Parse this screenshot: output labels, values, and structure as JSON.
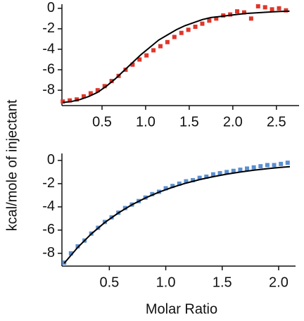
{
  "labels": {
    "y_label": "kcal/mole of injectant",
    "x_label": "Molar Ratio"
  },
  "chart_data": [
    {
      "type": "scatter",
      "xlim": [
        0.04,
        2.76
      ],
      "ylim": [
        -9.5,
        0.4
      ],
      "xticks": [
        0.5,
        {
          "value": 1,
          "label": "1.0"
        },
        1.5,
        {
          "value": 2,
          "label": "2.0"
        },
        2.5
      ],
      "yticks": [
        0,
        -2,
        -4,
        -6,
        -8
      ],
      "points": {
        "color": "#e0362a",
        "x": [
          0.05,
          0.13,
          0.21,
          0.29,
          0.37,
          0.45,
          0.53,
          0.61,
          0.69,
          0.77,
          0.85,
          0.93,
          1.01,
          1.09,
          1.17,
          1.25,
          1.33,
          1.41,
          1.49,
          1.57,
          1.65,
          1.73,
          1.81,
          1.89,
          1.97,
          2.05,
          2.13,
          2.21,
          2.29,
          2.37,
          2.45,
          2.53,
          2.61
        ],
        "values": [
          -9.1,
          -9.0,
          -8.9,
          -8.6,
          -8.3,
          -8.0,
          -7.6,
          -7.1,
          -6.6,
          -6.0,
          -5.5,
          -5.0,
          -4.6,
          -4.1,
          -3.7,
          -3.3,
          -2.8,
          -2.4,
          -2.1,
          -1.8,
          -1.5,
          -1.2,
          -1.0,
          -0.7,
          -0.6,
          -0.3,
          -0.4,
          -1.0,
          0.2,
          0.1,
          -0.1,
          0.0,
          -0.2
        ]
      },
      "fit": {
        "color": "#000000",
        "x": [
          0.05,
          0.15,
          0.25,
          0.35,
          0.45,
          0.55,
          0.65,
          0.75,
          0.85,
          0.95,
          1.05,
          1.15,
          1.25,
          1.35,
          1.45,
          1.55,
          1.65,
          1.75,
          1.85,
          1.95,
          2.05,
          2.15,
          2.25,
          2.35,
          2.45,
          2.55,
          2.65
        ],
        "values": [
          -9.2,
          -9.1,
          -8.9,
          -8.6,
          -8.2,
          -7.6,
          -6.9,
          -6.1,
          -5.3,
          -4.5,
          -3.8,
          -3.1,
          -2.6,
          -2.1,
          -1.7,
          -1.4,
          -1.1,
          -0.9,
          -0.8,
          -0.7,
          -0.6,
          -0.5,
          -0.45,
          -0.4,
          -0.35,
          -0.3,
          -0.28
        ]
      }
    },
    {
      "type": "scatter",
      "xlim": [
        0.08,
        2.15
      ],
      "ylim": [
        -9.1,
        0.6
      ],
      "xticks": [
        0.5,
        {
          "value": 1,
          "label": "1.0"
        },
        1.5,
        {
          "value": 2,
          "label": "2.0"
        }
      ],
      "yticks": [
        0,
        -2,
        -4,
        -6,
        -8
      ],
      "points": {
        "color": "#5b8fd0",
        "x": [
          0.1,
          0.16,
          0.22,
          0.28,
          0.34,
          0.4,
          0.46,
          0.52,
          0.58,
          0.64,
          0.7,
          0.76,
          0.82,
          0.88,
          0.94,
          1.0,
          1.06,
          1.12,
          1.18,
          1.24,
          1.3,
          1.36,
          1.42,
          1.48,
          1.54,
          1.6,
          1.66,
          1.72,
          1.78,
          1.84,
          1.9,
          1.96,
          2.02,
          2.08
        ],
        "values": [
          -8.8,
          -8.0,
          -7.4,
          -6.9,
          -6.3,
          -5.8,
          -5.3,
          -4.9,
          -4.5,
          -4.1,
          -3.8,
          -3.5,
          -3.2,
          -2.9,
          -2.7,
          -2.4,
          -2.2,
          -2.0,
          -1.8,
          -1.7,
          -1.5,
          -1.4,
          -1.2,
          -1.1,
          -1.0,
          -0.9,
          -0.8,
          -0.7,
          -0.6,
          -0.5,
          -0.4,
          -0.4,
          -0.3,
          -0.2
        ]
      },
      "fit": {
        "color": "#000000",
        "x": [
          0.1,
          0.22,
          0.34,
          0.46,
          0.58,
          0.7,
          0.82,
          0.94,
          1.06,
          1.18,
          1.3,
          1.42,
          1.54,
          1.66,
          1.78,
          1.9,
          2.02,
          2.1
        ],
        "values": [
          -8.86,
          -7.49,
          -6.33,
          -5.35,
          -4.52,
          -3.82,
          -3.23,
          -2.73,
          -2.31,
          -1.95,
          -1.65,
          -1.4,
          -1.18,
          -1.0,
          -0.84,
          -0.71,
          -0.6,
          -0.54
        ]
      }
    }
  ]
}
